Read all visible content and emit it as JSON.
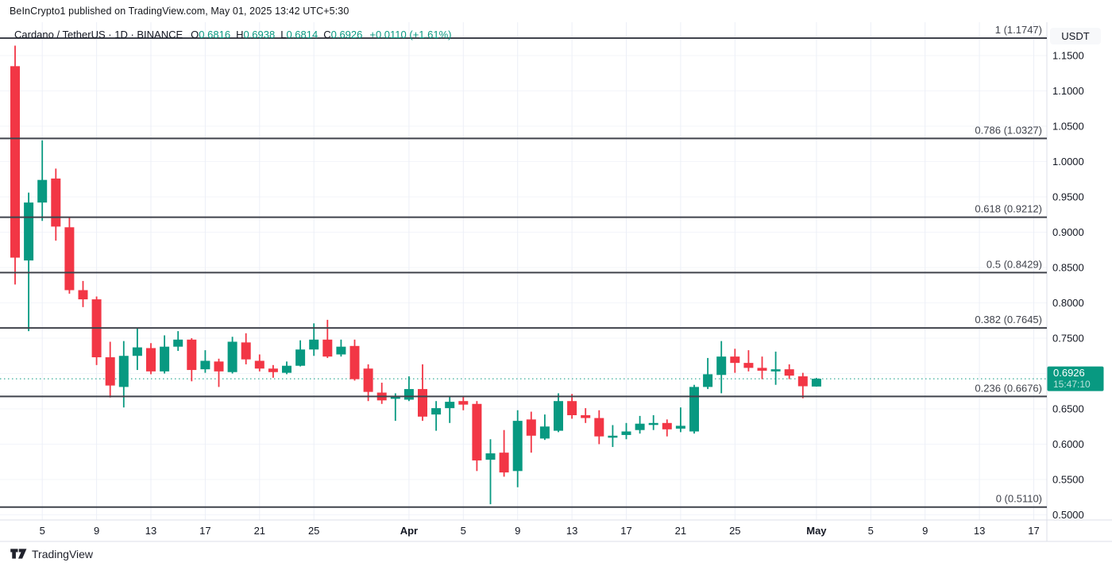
{
  "attribution": "BeInCrypto1 published on TradingView.com, May 01, 2025 13:42 UTC+5:30",
  "symbol_row": {
    "title": "Cardano / TetherUS · 1D · BINANCE",
    "ohlc": [
      {
        "label": "O",
        "value": "0.6816"
      },
      {
        "label": "H",
        "value": "0.6938"
      },
      {
        "label": "L",
        "value": "0.6814"
      },
      {
        "label": "C",
        "value": "0.6926"
      }
    ],
    "change": "+0.0110 (+1.61%)"
  },
  "axis": {
    "currency_label": "USDT",
    "y_ticks": [
      {
        "label": "1.1500",
        "price": 1.15
      },
      {
        "label": "1.1000",
        "price": 1.1
      },
      {
        "label": "1.0500",
        "price": 1.05
      },
      {
        "label": "1.0000",
        "price": 1.0
      },
      {
        "label": "0.9500",
        "price": 0.95
      },
      {
        "label": "0.9000",
        "price": 0.9
      },
      {
        "label": "0.8500",
        "price": 0.85
      },
      {
        "label": "0.8000",
        "price": 0.8
      },
      {
        "label": "0.7500",
        "price": 0.75
      },
      {
        "label": "0.7000",
        "price": 0.7
      },
      {
        "label": "0.6500",
        "price": 0.65
      },
      {
        "label": "0.6000",
        "price": 0.6
      },
      {
        "label": "0.5500",
        "price": 0.55
      },
      {
        "label": "0.5000",
        "price": 0.5
      }
    ],
    "x_ticks": [
      {
        "label": "5",
        "i": 2,
        "bold": false
      },
      {
        "label": "9",
        "i": 6,
        "bold": false
      },
      {
        "label": "13",
        "i": 10,
        "bold": false
      },
      {
        "label": "17",
        "i": 14,
        "bold": false
      },
      {
        "label": "21",
        "i": 18,
        "bold": false
      },
      {
        "label": "25",
        "i": 22,
        "bold": false
      },
      {
        "label": "Apr",
        "i": 29,
        "bold": true
      },
      {
        "label": "5",
        "i": 33,
        "bold": false
      },
      {
        "label": "9",
        "i": 37,
        "bold": false
      },
      {
        "label": "13",
        "i": 41,
        "bold": false
      },
      {
        "label": "17",
        "i": 45,
        "bold": false
      },
      {
        "label": "21",
        "i": 49,
        "bold": false
      },
      {
        "label": "25",
        "i": 53,
        "bold": false
      },
      {
        "label": "May",
        "i": 59,
        "bold": true
      },
      {
        "label": "5",
        "i": 63,
        "bold": false
      },
      {
        "label": "9",
        "i": 67,
        "bold": false
      },
      {
        "label": "13",
        "i": 71,
        "bold": false
      },
      {
        "label": "17",
        "i": 75,
        "bold": false
      }
    ]
  },
  "price_label": {
    "price": "0.6926",
    "countdown": "15:47:10"
  },
  "logo_text": "TradingView",
  "colors": {
    "up": "#089981",
    "down": "#f23645",
    "fib_line": "#40434c",
    "grid_v": "#eceff7",
    "grid_h": "#f3f5fa",
    "axis_border": "#dcdfe8",
    "axis_text": "#131722",
    "badge_bg": "#089981"
  },
  "chart_data": {
    "type": "candlestick",
    "symbol": "ADA/USDT",
    "interval": "1D",
    "exchange": "BINANCE",
    "ylim": [
      0.4927,
      1.1972
    ],
    "current_price": 0.6926,
    "fib_levels": [
      {
        "label": "1 (1.1747)",
        "price": 1.1747
      },
      {
        "label": "0.786 (1.0327)",
        "price": 1.0327
      },
      {
        "label": "0.618 (0.9212)",
        "price": 0.9212
      },
      {
        "label": "0.5 (0.8429)",
        "price": 0.8429
      },
      {
        "label": "0.382 (0.7645)",
        "price": 0.7645
      },
      {
        "label": "0.236 (0.6676)",
        "price": 0.6676
      },
      {
        "label": "0 (0.5110)",
        "price": 0.511
      }
    ],
    "candles": [
      {
        "t": "2025-03-03",
        "o": 1.135,
        "h": 1.164,
        "l": 0.826,
        "c": 0.864
      },
      {
        "t": "2025-03-04",
        "o": 0.86,
        "h": 0.956,
        "l": 0.76,
        "c": 0.942
      },
      {
        "t": "2025-03-05",
        "o": 0.942,
        "h": 1.03,
        "l": 0.916,
        "c": 0.974
      },
      {
        "t": "2025-03-06",
        "o": 0.976,
        "h": 0.99,
        "l": 0.888,
        "c": 0.908
      },
      {
        "t": "2025-03-07",
        "o": 0.907,
        "h": 0.921,
        "l": 0.813,
        "c": 0.818
      },
      {
        "t": "2025-03-08",
        "o": 0.818,
        "h": 0.831,
        "l": 0.794,
        "c": 0.805
      },
      {
        "t": "2025-03-09",
        "o": 0.805,
        "h": 0.809,
        "l": 0.712,
        "c": 0.723
      },
      {
        "t": "2025-03-10",
        "o": 0.723,
        "h": 0.745,
        "l": 0.666,
        "c": 0.683
      },
      {
        "t": "2025-03-11",
        "o": 0.681,
        "h": 0.746,
        "l": 0.652,
        "c": 0.725
      },
      {
        "t": "2025-03-12",
        "o": 0.725,
        "h": 0.765,
        "l": 0.705,
        "c": 0.737
      },
      {
        "t": "2025-03-13",
        "o": 0.736,
        "h": 0.743,
        "l": 0.699,
        "c": 0.703
      },
      {
        "t": "2025-03-14",
        "o": 0.703,
        "h": 0.754,
        "l": 0.7,
        "c": 0.738
      },
      {
        "t": "2025-03-15",
        "o": 0.738,
        "h": 0.76,
        "l": 0.732,
        "c": 0.748
      },
      {
        "t": "2025-03-16",
        "o": 0.748,
        "h": 0.75,
        "l": 0.689,
        "c": 0.705
      },
      {
        "t": "2025-03-17",
        "o": 0.706,
        "h": 0.733,
        "l": 0.701,
        "c": 0.718
      },
      {
        "t": "2025-03-18",
        "o": 0.717,
        "h": 0.721,
        "l": 0.681,
        "c": 0.703
      },
      {
        "t": "2025-03-19",
        "o": 0.702,
        "h": 0.752,
        "l": 0.7,
        "c": 0.745
      },
      {
        "t": "2025-03-20",
        "o": 0.744,
        "h": 0.757,
        "l": 0.713,
        "c": 0.72
      },
      {
        "t": "2025-03-21",
        "o": 0.718,
        "h": 0.727,
        "l": 0.703,
        "c": 0.707
      },
      {
        "t": "2025-03-22",
        "o": 0.707,
        "h": 0.712,
        "l": 0.694,
        "c": 0.702
      },
      {
        "t": "2025-03-23",
        "o": 0.701,
        "h": 0.717,
        "l": 0.699,
        "c": 0.711
      },
      {
        "t": "2025-03-24",
        "o": 0.711,
        "h": 0.747,
        "l": 0.71,
        "c": 0.734
      },
      {
        "t": "2025-03-25",
        "o": 0.734,
        "h": 0.771,
        "l": 0.725,
        "c": 0.748
      },
      {
        "t": "2025-03-26",
        "o": 0.748,
        "h": 0.776,
        "l": 0.722,
        "c": 0.724
      },
      {
        "t": "2025-03-27",
        "o": 0.727,
        "h": 0.748,
        "l": 0.724,
        "c": 0.738
      },
      {
        "t": "2025-03-28",
        "o": 0.739,
        "h": 0.748,
        "l": 0.69,
        "c": 0.692
      },
      {
        "t": "2025-03-29",
        "o": 0.707,
        "h": 0.713,
        "l": 0.661,
        "c": 0.674
      },
      {
        "t": "2025-03-30",
        "o": 0.673,
        "h": 0.687,
        "l": 0.657,
        "c": 0.662
      },
      {
        "t": "2025-03-31",
        "o": 0.665,
        "h": 0.672,
        "l": 0.633,
        "c": 0.667
      },
      {
        "t": "2025-04-01",
        "o": 0.663,
        "h": 0.696,
        "l": 0.661,
        "c": 0.678
      },
      {
        "t": "2025-04-02",
        "o": 0.678,
        "h": 0.713,
        "l": 0.633,
        "c": 0.639
      },
      {
        "t": "2025-04-03",
        "o": 0.642,
        "h": 0.661,
        "l": 0.619,
        "c": 0.651
      },
      {
        "t": "2025-04-04",
        "o": 0.651,
        "h": 0.667,
        "l": 0.63,
        "c": 0.66
      },
      {
        "t": "2025-04-05",
        "o": 0.661,
        "h": 0.667,
        "l": 0.648,
        "c": 0.656
      },
      {
        "t": "2025-04-06",
        "o": 0.657,
        "h": 0.661,
        "l": 0.562,
        "c": 0.577
      },
      {
        "t": "2025-04-07",
        "o": 0.578,
        "h": 0.607,
        "l": 0.515,
        "c": 0.587
      },
      {
        "t": "2025-04-08",
        "o": 0.588,
        "h": 0.62,
        "l": 0.554,
        "c": 0.56
      },
      {
        "t": "2025-04-09",
        "o": 0.562,
        "h": 0.648,
        "l": 0.539,
        "c": 0.633
      },
      {
        "t": "2025-04-10",
        "o": 0.635,
        "h": 0.646,
        "l": 0.588,
        "c": 0.612
      },
      {
        "t": "2025-04-11",
        "o": 0.608,
        "h": 0.642,
        "l": 0.606,
        "c": 0.625
      },
      {
        "t": "2025-04-12",
        "o": 0.619,
        "h": 0.672,
        "l": 0.617,
        "c": 0.661
      },
      {
        "t": "2025-04-13",
        "o": 0.661,
        "h": 0.671,
        "l": 0.636,
        "c": 0.641
      },
      {
        "t": "2025-04-14",
        "o": 0.641,
        "h": 0.651,
        "l": 0.63,
        "c": 0.637
      },
      {
        "t": "2025-04-15",
        "o": 0.637,
        "h": 0.648,
        "l": 0.6,
        "c": 0.611
      },
      {
        "t": "2025-04-16",
        "o": 0.61,
        "h": 0.627,
        "l": 0.596,
        "c": 0.612
      },
      {
        "t": "2025-04-17",
        "o": 0.613,
        "h": 0.63,
        "l": 0.607,
        "c": 0.618
      },
      {
        "t": "2025-04-18",
        "o": 0.62,
        "h": 0.64,
        "l": 0.615,
        "c": 0.629
      },
      {
        "t": "2025-04-19",
        "o": 0.629,
        "h": 0.641,
        "l": 0.62,
        "c": 0.63
      },
      {
        "t": "2025-04-20",
        "o": 0.63,
        "h": 0.635,
        "l": 0.611,
        "c": 0.621
      },
      {
        "t": "2025-04-21",
        "o": 0.622,
        "h": 0.652,
        "l": 0.617,
        "c": 0.626
      },
      {
        "t": "2025-04-22",
        "o": 0.618,
        "h": 0.684,
        "l": 0.615,
        "c": 0.681
      },
      {
        "t": "2025-04-23",
        "o": 0.681,
        "h": 0.722,
        "l": 0.678,
        "c": 0.699
      },
      {
        "t": "2025-04-24",
        "o": 0.698,
        "h": 0.746,
        "l": 0.672,
        "c": 0.724
      },
      {
        "t": "2025-04-25",
        "o": 0.724,
        "h": 0.735,
        "l": 0.701,
        "c": 0.715
      },
      {
        "t": "2025-04-26",
        "o": 0.715,
        "h": 0.733,
        "l": 0.703,
        "c": 0.708
      },
      {
        "t": "2025-04-27",
        "o": 0.708,
        "h": 0.724,
        "l": 0.692,
        "c": 0.704
      },
      {
        "t": "2025-04-28",
        "o": 0.703,
        "h": 0.731,
        "l": 0.684,
        "c": 0.706
      },
      {
        "t": "2025-04-29",
        "o": 0.706,
        "h": 0.713,
        "l": 0.692,
        "c": 0.697
      },
      {
        "t": "2025-04-30",
        "o": 0.696,
        "h": 0.701,
        "l": 0.665,
        "c": 0.682
      },
      {
        "t": "2025-05-01",
        "o": 0.6816,
        "h": 0.6938,
        "l": 0.6814,
        "c": 0.6926
      }
    ]
  }
}
